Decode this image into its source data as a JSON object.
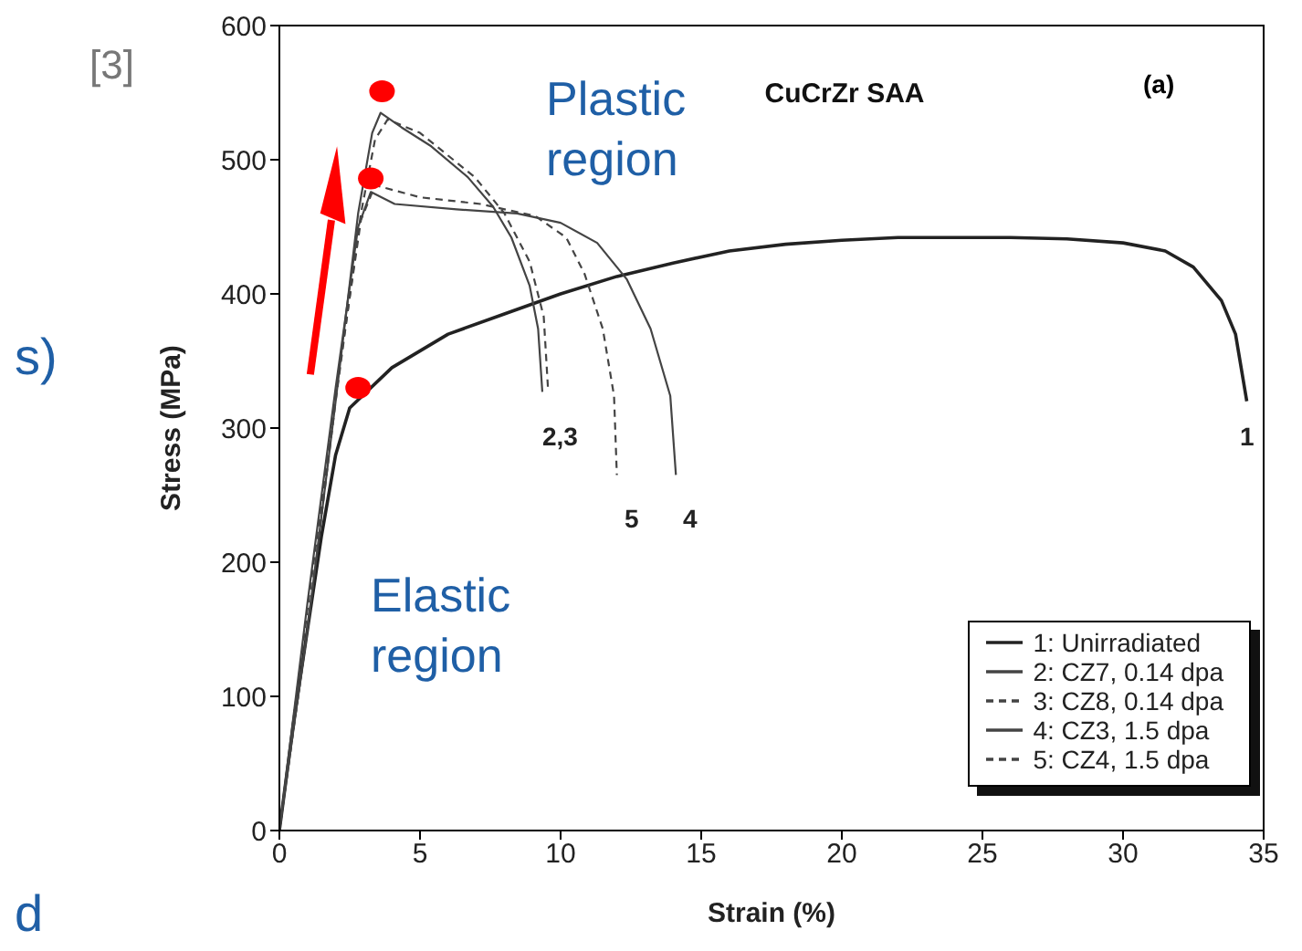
{
  "chart_data": {
    "type": "line",
    "title": "CuCrZr SAA",
    "xlabel": "Strain (%)",
    "ylabel": "Stress (MPa)",
    "xlim": [
      0,
      35
    ],
    "xticks": [
      0,
      5,
      10,
      15,
      20,
      25,
      30,
      35
    ],
    "ylim": [
      0,
      600
    ],
    "yticks": [
      0,
      100,
      200,
      300,
      400,
      500,
      600
    ],
    "legend": "bottom right",
    "grid": false,
    "marker": "none",
    "series": [
      {
        "name": "1: Unirradiated",
        "color": "#222222",
        "line_style": "solid",
        "x": [
          0,
          0.5,
          1,
          1.5,
          2,
          2.5,
          2.8,
          4,
          6,
          8,
          10,
          12,
          14,
          16,
          18,
          20,
          22,
          26,
          28,
          30,
          31.5,
          32.5,
          33.5,
          34,
          34.4
        ],
        "values": [
          0,
          80,
          150,
          220,
          280,
          315,
          null,
          345,
          370,
          385,
          400,
          413,
          423,
          432,
          437,
          440,
          442,
          442,
          441,
          438,
          432,
          420,
          395,
          370,
          320
        ]
      },
      {
        "name": "2: CZ7, 0.14 dpa",
        "color": "#444444",
        "line_style": "solid",
        "x": [
          0,
          1,
          2,
          2.8,
          3.3,
          3.6,
          4.35,
          5.4,
          6.7,
          7.6,
          8.25,
          8.9,
          9.2,
          9.35
        ],
        "values": [
          0,
          150,
          320,
          460,
          520,
          535,
          524,
          510,
          487,
          465,
          442,
          406,
          374,
          327
        ]
      },
      {
        "name": "3: CZ8, 0.14 dpa",
        "color": "#444444",
        "line_style": "dashed",
        "x": [
          0,
          1,
          2,
          2.9,
          3.4,
          3.85,
          5,
          6.95,
          8,
          8.9,
          9.4,
          9.55
        ],
        "values": [
          0,
          150,
          320,
          460,
          515,
          530,
          520,
          487,
          460,
          424,
          383,
          330
        ]
      },
      {
        "name": "4: CZ3, 1.5 dpa",
        "color": "#444444",
        "line_style": "solid",
        "x": [
          0,
          1,
          2,
          2.8,
          3.25,
          4.1,
          6.3,
          8.45,
          10,
          11.3,
          12.35,
          13.2,
          13.9,
          14.1
        ],
        "values": [
          0,
          170,
          330,
          450,
          476,
          467,
          463,
          460,
          453,
          438,
          411,
          374,
          324,
          265
        ]
      },
      {
        "name": "5: CZ4, 1.5 dpa",
        "color": "#444444",
        "line_style": "dashed",
        "x": [
          0,
          1,
          2,
          2.9,
          3.4,
          5,
          7.15,
          9.1,
          10.2,
          10.85,
          11.5,
          11.9,
          12
        ],
        "values": [
          0,
          165,
          325,
          455,
          481,
          472,
          467,
          458,
          442,
          415,
          374,
          324,
          265
        ]
      },
      {
        "type": "scatter",
        "color": "#ff0000",
        "marker": "circle",
        "x": [
          2.8,
          3.25,
          3.65
        ],
        "values": [
          330,
          486,
          551
        ]
      }
    ],
    "annotations": [
      "(a)",
      "Plastic region",
      "Elastic region",
      "[3]",
      "s)",
      "d",
      "1",
      "2,3",
      "5",
      "4"
    ]
  }
}
